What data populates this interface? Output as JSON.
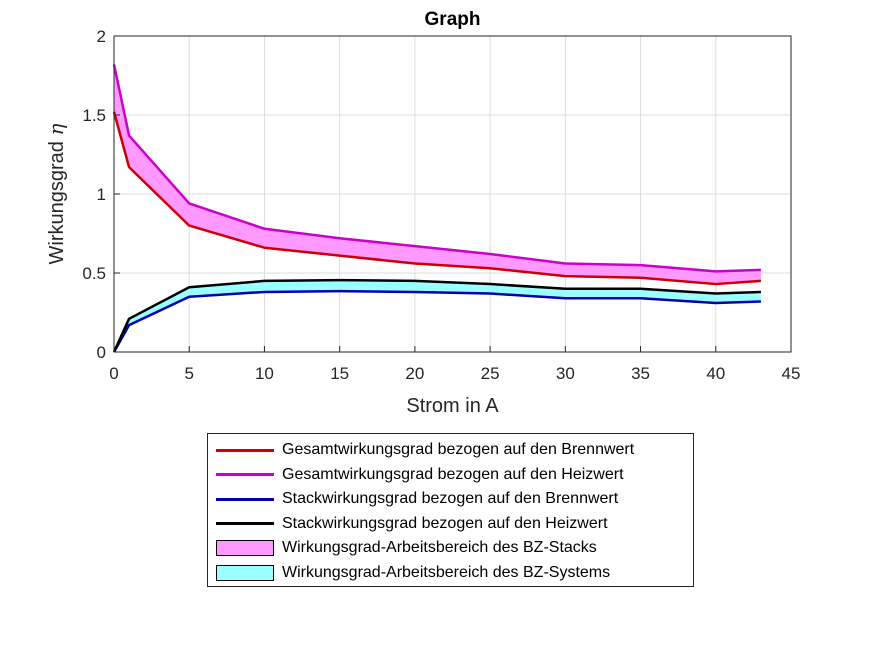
{
  "chart_data": {
    "type": "line",
    "title": "Graph",
    "xlabel": "Strom in A",
    "ylabel": "Wirkungsgrad",
    "ylabel_symbol": "η",
    "xlim": [
      0,
      45
    ],
    "ylim": [
      0,
      2
    ],
    "xticks": [
      "0",
      "5",
      "10",
      "15",
      "20",
      "25",
      "30",
      "35",
      "40",
      "45"
    ],
    "yticks": [
      "0",
      "0.5",
      "1",
      "1.5",
      "2"
    ],
    "grid": true,
    "legend_position": "bottom-outside",
    "x": [
      0,
      1,
      5,
      10,
      15,
      20,
      25,
      30,
      35,
      40,
      43
    ],
    "series": [
      {
        "name": "Gesamtwirkungsgrad bezogen auf den Brennwert",
        "color": "#cc0000",
        "values": [
          1.52,
          1.17,
          0.8,
          0.66,
          0.61,
          0.56,
          0.53,
          0.48,
          0.47,
          0.43,
          0.45
        ]
      },
      {
        "name": "Gesamtwirkungsgrad bezogen auf den Heizwert",
        "color": "#cc00cc",
        "values": [
          1.82,
          1.37,
          0.94,
          0.78,
          0.72,
          0.67,
          0.62,
          0.56,
          0.55,
          0.51,
          0.52
        ]
      },
      {
        "name": "Stackwirkungsgrad bezogen auf den Brennwert",
        "color": "#0000aa",
        "values": [
          0.0,
          0.17,
          0.35,
          0.38,
          0.385,
          0.38,
          0.37,
          0.34,
          0.34,
          0.31,
          0.32
        ]
      },
      {
        "name": "Stackwirkungsgrad bezogen auf den Heizwert",
        "color": "#000000",
        "values": [
          0.0,
          0.21,
          0.41,
          0.45,
          0.455,
          0.45,
          0.43,
          0.4,
          0.4,
          0.37,
          0.38
        ]
      }
    ],
    "areas": [
      {
        "name": "Wirkungsgrad-Arbeitsbereich des BZ-Stacks",
        "color": "#ff99ff",
        "lower_series": 0,
        "upper_series": 1
      },
      {
        "name": "Wirkungsgrad-Arbeitsbereich des BZ-Systems",
        "color": "#99ffff",
        "lower_series": 2,
        "upper_series": 3
      }
    ]
  }
}
